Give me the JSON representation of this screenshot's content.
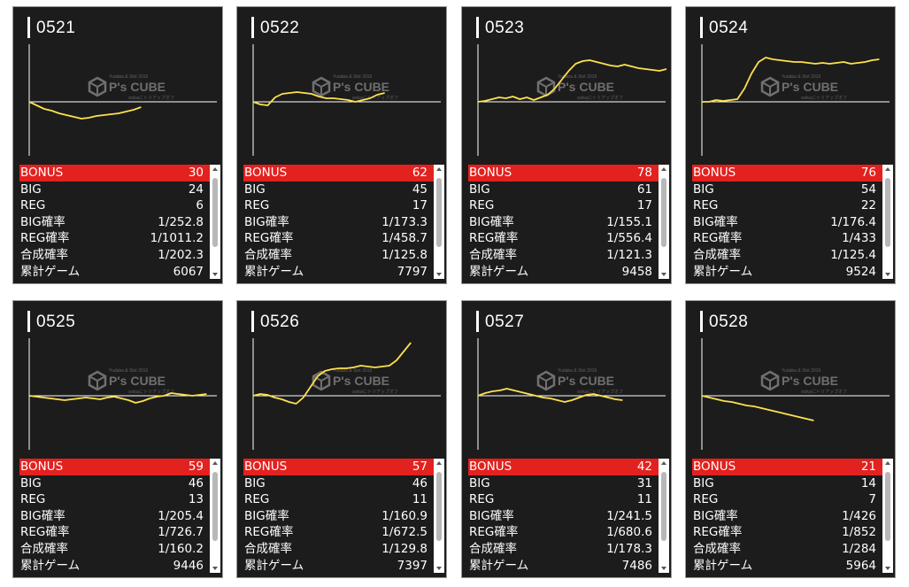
{
  "brand": {
    "watermark_top": "Yudaba & Slot 2019",
    "watermark_main": "P's CUBE",
    "watermark_sub": "ookaにトリアップオフ",
    "colors": {
      "line": "#ffe14d",
      "bonus_row": "#e3211e",
      "card_bg": "#1c1c1c"
    }
  },
  "stat_labels": {
    "bonus": "BONUS",
    "big": "BIG",
    "reg": "REG",
    "big_rate": "BIG確率",
    "reg_rate": "REG確率",
    "total_rate": "合成確率",
    "games": "累計ゲーム"
  },
  "machines": [
    {
      "id": "0521",
      "bonus": "30",
      "big": "24",
      "reg": "6",
      "big_rate": "1/252.8",
      "reg_rate": "1/1011.2",
      "total_rate": "1/202.3",
      "games": "6067",
      "trend": [
        0,
        -4,
        -8,
        -10,
        -13,
        -15,
        -17,
        -19,
        -18,
        -16,
        -15,
        -14,
        -13,
        -11,
        -9,
        -6
      ]
    },
    {
      "id": "0522",
      "bonus": "62",
      "big": "45",
      "reg": "17",
      "big_rate": "1/173.3",
      "reg_rate": "1/458.7",
      "total_rate": "1/125.8",
      "games": "7797",
      "trend": [
        0,
        -3,
        -4,
        5,
        9,
        10,
        11,
        10,
        9,
        6,
        4,
        4,
        3,
        2,
        0,
        2,
        4,
        8,
        10
      ]
    },
    {
      "id": "0523",
      "bonus": "78",
      "big": "61",
      "reg": "17",
      "big_rate": "1/155.1",
      "reg_rate": "1/556.4",
      "total_rate": "1/121.3",
      "games": "9458",
      "trend": [
        0,
        1,
        3,
        5,
        4,
        6,
        3,
        5,
        2,
        5,
        8,
        15,
        25,
        35,
        43,
        46,
        47,
        45,
        43,
        41,
        40,
        42,
        40,
        38,
        37,
        36,
        35,
        37
      ]
    },
    {
      "id": "0524",
      "bonus": "76",
      "big": "54",
      "reg": "22",
      "big_rate": "1/176.4",
      "reg_rate": "1/433",
      "total_rate": "1/125.4",
      "games": "9524",
      "trend": [
        0,
        0,
        2,
        1,
        2,
        3,
        15,
        32,
        45,
        50,
        48,
        47,
        46,
        45,
        45,
        44,
        43,
        44,
        43,
        44,
        45,
        43,
        44,
        45,
        47,
        48
      ]
    },
    {
      "id": "0525",
      "bonus": "59",
      "big": "46",
      "reg": "13",
      "big_rate": "1/205.4",
      "reg_rate": "1/726.7",
      "total_rate": "1/160.2",
      "games": "9446",
      "trend": [
        0,
        -1,
        -2,
        -3,
        -4,
        -5,
        -4,
        -3,
        -2,
        -3,
        -4,
        -2,
        -1,
        -3,
        -5,
        -8,
        -6,
        -3,
        -1,
        0,
        3,
        2,
        1,
        0,
        1,
        2
      ]
    },
    {
      "id": "0526",
      "bonus": "57",
      "big": "46",
      "reg": "11",
      "big_rate": "1/160.9",
      "reg_rate": "1/672.5",
      "total_rate": "1/129.8",
      "games": "7397",
      "trend": [
        0,
        2,
        1,
        -2,
        -4,
        -7,
        -9,
        -2,
        10,
        22,
        28,
        30,
        31,
        31,
        32,
        34,
        33,
        32,
        33,
        34,
        40,
        50,
        60
      ]
    },
    {
      "id": "0527",
      "bonus": "42",
      "big": "31",
      "reg": "11",
      "big_rate": "1/241.5",
      "reg_rate": "1/680.6",
      "total_rate": "1/178.3",
      "games": "7486",
      "trend": [
        0,
        3,
        5,
        6,
        8,
        6,
        4,
        2,
        0,
        -2,
        -3,
        -5,
        -7,
        -5,
        -2,
        1,
        2,
        0,
        -2,
        -4,
        -5
      ]
    },
    {
      "id": "0528",
      "bonus": "21",
      "big": "14",
      "reg": "7",
      "big_rate": "1/426",
      "reg_rate": "1/852",
      "total_rate": "1/284",
      "games": "5964",
      "trend": [
        0,
        -2,
        -4,
        -6,
        -7,
        -9,
        -11,
        -12,
        -14,
        -16,
        -18,
        -20,
        -22,
        -24,
        -26,
        -28
      ]
    }
  ]
}
